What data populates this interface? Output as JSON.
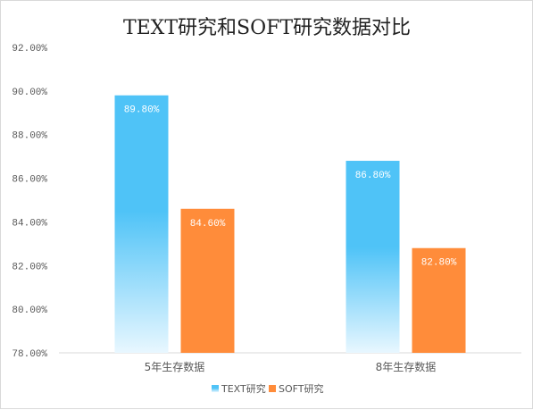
{
  "chart_data": {
    "type": "bar",
    "title": "TEXT研究和SOFT研究数据对比",
    "categories": [
      "5年生存数据",
      "8年生存数据"
    ],
    "series": [
      {
        "name": "TEXT研究",
        "values": [
          89.8,
          86.8
        ],
        "labels": [
          "89.80%",
          "86.80%"
        ],
        "color": "#4fc3f7"
      },
      {
        "name": "SOFT研究",
        "values": [
          84.6,
          82.8
        ],
        "labels": [
          "84.60%",
          "82.80%"
        ],
        "color": "#ff8c3a"
      }
    ],
    "ylim": [
      78.0,
      92.0
    ],
    "yticks": [
      78.0,
      80.0,
      82.0,
      84.0,
      86.0,
      88.0,
      90.0,
      92.0
    ],
    "ytick_labels": [
      "78.00%",
      "80.00%",
      "82.00%",
      "84.00%",
      "86.00%",
      "88.00%",
      "90.00%",
      "92.00%"
    ],
    "xlabel": "",
    "ylabel": "",
    "grid": false,
    "legend": "bottom"
  }
}
